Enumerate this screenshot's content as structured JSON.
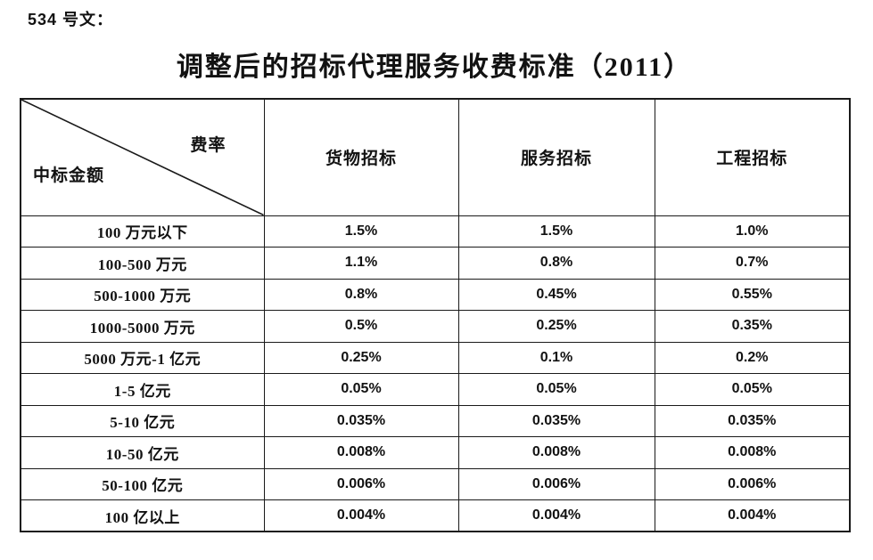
{
  "doc_label": "534 号文：",
  "title": "调整后的招标代理服务收费标准（2011）",
  "table": {
    "corner": {
      "top_right": "费率",
      "bottom_left": "中标金额"
    },
    "columns": [
      "货物招标",
      "服务招标",
      "工程招标"
    ],
    "rows": [
      {
        "label": "100 万元以下",
        "values": [
          "1.5%",
          "1.5%",
          "1.0%"
        ]
      },
      {
        "label": "100-500 万元",
        "values": [
          "1.1%",
          "0.8%",
          "0.7%"
        ]
      },
      {
        "label": "500-1000 万元",
        "values": [
          "0.8%",
          "0.45%",
          "0.55%"
        ]
      },
      {
        "label": "1000-5000 万元",
        "values": [
          "0.5%",
          "0.25%",
          "0.35%"
        ]
      },
      {
        "label": "5000 万元-1 亿元",
        "values": [
          "0.25%",
          "0.1%",
          "0.2%"
        ]
      },
      {
        "label": "1-5 亿元",
        "values": [
          "0.05%",
          "0.05%",
          "0.05%"
        ]
      },
      {
        "label": "5-10 亿元",
        "values": [
          "0.035%",
          "0.035%",
          "0.035%"
        ]
      },
      {
        "label": "10-50 亿元",
        "values": [
          "0.008%",
          "0.008%",
          "0.008%"
        ]
      },
      {
        "label": "50-100 亿元",
        "values": [
          "0.006%",
          "0.006%",
          "0.006%"
        ]
      },
      {
        "label": "100 亿以上",
        "values": [
          "0.004%",
          "0.004%",
          "0.004%"
        ]
      }
    ]
  }
}
